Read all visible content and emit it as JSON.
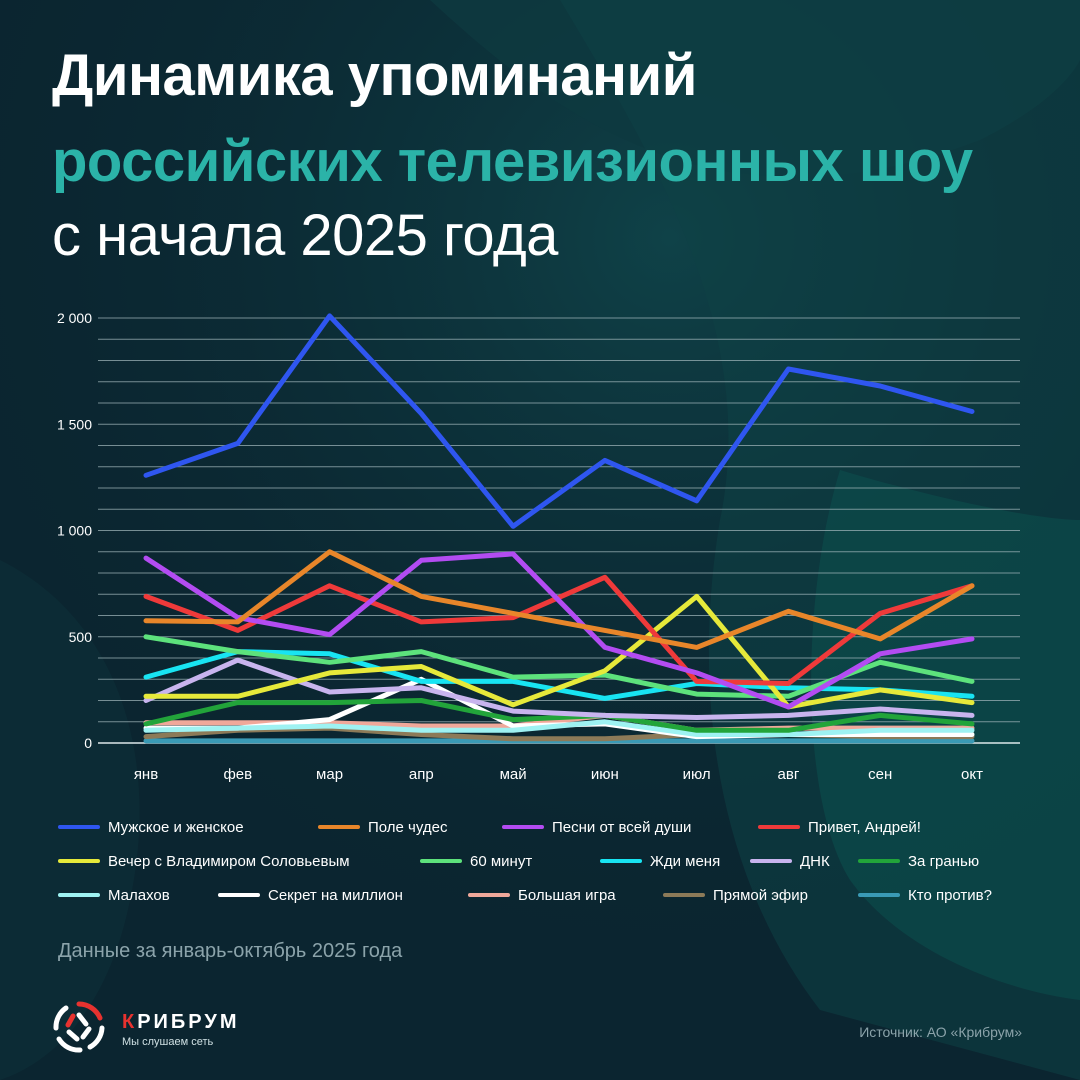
{
  "title": {
    "line1": "Динамика упоминаний",
    "line2": "российских телевизионных шоу",
    "line3": "с начала 2025 года"
  },
  "chart_data": {
    "type": "line",
    "ylim": [
      0,
      2000
    ],
    "yticks": [
      0,
      500,
      1000,
      1500,
      2000
    ],
    "ytick_labels": [
      "0",
      "500",
      "1 000",
      "1 500",
      "2 000"
    ],
    "categories": [
      "янв",
      "фев",
      "мар",
      "апр",
      "май",
      "июн",
      "июл",
      "авг",
      "сен",
      "окт"
    ],
    "series": [
      {
        "name": "Мужское и женское",
        "color": "#2f56f0",
        "values": [
          1260,
          1410,
          2010,
          1550,
          1020,
          1330,
          1140,
          1760,
          1680,
          1560
        ]
      },
      {
        "name": "Поле чудес",
        "color": "#e8862a",
        "values": [
          575,
          570,
          900,
          690,
          610,
          530,
          450,
          620,
          490,
          740
        ]
      },
      {
        "name": "Песни от всей души",
        "color": "#b34cf2",
        "values": [
          870,
          590,
          510,
          860,
          890,
          450,
          330,
          170,
          420,
          490
        ]
      },
      {
        "name": "Привет, Андрей!",
        "color": "#ef3a3a",
        "values": [
          690,
          530,
          740,
          570,
          590,
          780,
          290,
          280,
          610,
          740
        ]
      },
      {
        "name": "Вечер с Владимиром Соловьевым",
        "color": "#e6e93a",
        "values": [
          220,
          220,
          330,
          360,
          180,
          340,
          690,
          170,
          250,
          190
        ]
      },
      {
        "name": "60 минут",
        "color": "#5de27c",
        "values": [
          500,
          430,
          380,
          430,
          310,
          320,
          230,
          220,
          380,
          290
        ]
      },
      {
        "name": "Жди меня",
        "color": "#18e4f2",
        "values": [
          310,
          430,
          420,
          290,
          290,
          210,
          280,
          260,
          250,
          220
        ]
      },
      {
        "name": "ДНК",
        "color": "#c8b4ee",
        "values": [
          200,
          390,
          240,
          260,
          150,
          130,
          120,
          130,
          160,
          130
        ]
      },
      {
        "name": "За гранью",
        "color": "#22a43a",
        "values": [
          90,
          190,
          190,
          200,
          110,
          130,
          60,
          60,
          130,
          90
        ]
      },
      {
        "name": "Малахов",
        "color": "#9ef2f2",
        "values": [
          60,
          70,
          80,
          60,
          60,
          100,
          40,
          40,
          60,
          60
        ]
      },
      {
        "name": "Секрет на миллион",
        "color": "#ffffff",
        "values": [
          70,
          70,
          110,
          300,
          80,
          90,
          30,
          40,
          40,
          40
        ]
      },
      {
        "name": "Большая игра",
        "color": "#f0a89a",
        "values": [
          95,
          95,
          95,
          80,
          80,
          130,
          60,
          70,
          70,
          70
        ]
      },
      {
        "name": "Прямой эфир",
        "color": "#8c7a58",
        "values": [
          30,
          60,
          70,
          40,
          20,
          20,
          40,
          40,
          30,
          30
        ]
      },
      {
        "name": "Кто против?",
        "color": "#3a9ab5",
        "values": [
          10,
          10,
          10,
          10,
          10,
          10,
          10,
          10,
          10,
          10
        ]
      }
    ]
  },
  "note": "Данные за январь-октябрь 2025 года",
  "brand": {
    "first_letter": "К",
    "rest": "РИБРУМ",
    "tagline": "Мы слушаем сеть"
  },
  "source": "Источник: АО «Крибрум»"
}
